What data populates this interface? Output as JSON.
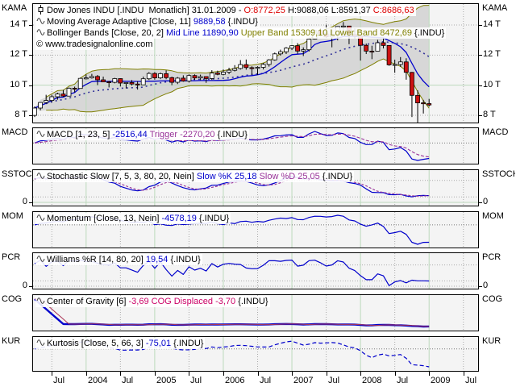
{
  "window_title": "Tradesignal chart - Dow Jones INDU monthly with indicators",
  "main_panel": {
    "name": "KAMA",
    "title_segments": [
      {
        "t": "Dow Jones INDU [.INDU  Monatlich] 31.01.2009 - ",
        "c": "#000000"
      },
      {
        "t": "O:8772,25",
        "c": "#dd0000"
      },
      {
        "t": " H:9088,06 L:8591,37 ",
        "c": "#000000"
      },
      {
        "t": "C:8686,63",
        "c": "#dd0000"
      }
    ],
    "ma_segments": [
      {
        "t": "Moving Average Adaptive [Close, 11] ",
        "c": "#000000"
      },
      {
        "t": "9889,58",
        "c": "#0000cc"
      },
      {
        "t": " {.INDU}",
        "c": "#000000"
      }
    ],
    "bb_segments": [
      {
        "t": "Bollinger Bands [Close, 20, 2] ",
        "c": "#000000"
      },
      {
        "t": "Mid Line 11890,90",
        "c": "#0000cc"
      },
      {
        "t": " ",
        "c": "#000000"
      },
      {
        "t": "Upper Band 15309,10",
        "c": "#808000"
      },
      {
        "t": " ",
        "c": "#000000"
      },
      {
        "t": "Lower Band 8472,69",
        "c": "#808000"
      },
      {
        "t": " {.INDU}",
        "c": "#000000"
      }
    ],
    "copyright": "© www.tradesignalonline.com",
    "y_ticks": [
      {
        "label": "14 T",
        "value": 14000
      },
      {
        "label": "12 T",
        "value": 12000
      },
      {
        "label": "10 T",
        "value": 10000
      },
      {
        "label": "8 T",
        "value": 8000
      }
    ]
  },
  "indicator_panels": [
    {
      "id": "macd",
      "name": "MACD",
      "segments": [
        {
          "t": "MACD [1, 23, 5] ",
          "c": "#000000"
        },
        {
          "t": "-2516,44",
          "c": "#0000cc"
        },
        {
          "t": " Trigger -2270,20",
          "c": "#993399"
        },
        {
          "t": " {.INDU}",
          "c": "#000000"
        }
      ]
    },
    {
      "id": "sstoc",
      "name": "SSTOCH",
      "zero_label": "0",
      "segments": [
        {
          "t": "Stochastic Slow [7, 5, 3, 80, 20, Nein] ",
          "c": "#000000"
        },
        {
          "t": "Slow %K 25,18",
          "c": "#0000cc"
        },
        {
          "t": " ",
          "c": "#000000"
        },
        {
          "t": "Slow %D 25,05",
          "c": "#993399"
        },
        {
          "t": " {.INDU}",
          "c": "#000000"
        }
      ]
    },
    {
      "id": "mom",
      "name": "MOM",
      "segments": [
        {
          "t": "Momentum [Close, 13, Nein] ",
          "c": "#000000"
        },
        {
          "t": "-4578,19",
          "c": "#0000cc"
        },
        {
          "t": " {.INDU}",
          "c": "#000000"
        }
      ]
    },
    {
      "id": "pcr",
      "name": "PCR",
      "zero_label": "0",
      "segments": [
        {
          "t": "Williams %R [14, 80, 20] ",
          "c": "#000000"
        },
        {
          "t": "19,54",
          "c": "#0000cc"
        },
        {
          "t": " {.INDU}",
          "c": "#000000"
        }
      ]
    },
    {
      "id": "cog",
      "name": "COG",
      "segments": [
        {
          "t": "Center of Gravity [6] ",
          "c": "#000000"
        },
        {
          "t": "-3,69",
          "c": "#cc0066"
        },
        {
          "t": " COG Displaced -3,70",
          "c": "#cc0066"
        },
        {
          "t": " {.INDU}",
          "c": "#000000"
        }
      ]
    },
    {
      "id": "kur",
      "name": "KUR",
      "segments": [
        {
          "t": "Kurtosis [Close, 5, 66, 3] ",
          "c": "#000000"
        },
        {
          "t": "-75,01",
          "c": "#0000cc"
        },
        {
          "t": " {.INDU}",
          "c": "#000000"
        }
      ]
    }
  ],
  "x_axis": {
    "tick_labels": [
      "Jul",
      "2004",
      "Jul",
      "2005",
      "Jul",
      "2006",
      "Jul",
      "2007",
      "Jul",
      "2008",
      "Jul",
      "2009",
      "Jul"
    ]
  },
  "colors": {
    "up_candle": "#ffffff",
    "down_candle": "#cc1111",
    "wick": "#000000",
    "kama_line": "#0000cc",
    "bollinger_band": "#7f7f00",
    "band_fill": "#d7d7d7",
    "mid_line": "#333399",
    "indicator_line": "#0000cc",
    "signal_line": "#993399",
    "cog_displaced_line": "#aa3355",
    "grid_green": "#bcd9bc",
    "grid_dot": "#aaaaaa",
    "panel_bg": "#f4f4f4",
    "value_red": "#dd0000",
    "value_blue": "#0000cc",
    "value_olive": "#808000",
    "value_purple": "#993399",
    "value_magenta": "#cc0066"
  },
  "chart_data": {
    "type": "candlestick",
    "symbol": ".INDU",
    "series_name": "Dow Jones INDU",
    "interval": "Monatlich",
    "last_bar_date": "31.01.2009",
    "last_bar": {
      "open": 8772.25,
      "high": 9088.06,
      "low": 8591.37,
      "close": 8686.63
    },
    "start_month": "2003-04",
    "end_month": "2009-01",
    "y_axis": {
      "tick_values": [
        8000,
        10000,
        12000,
        14000
      ],
      "tick_labels": [
        "8 T",
        "10 T",
        "12 T",
        "14 T"
      ],
      "approx_range": [
        7460,
        15450
      ]
    },
    "x_tick_labels": [
      "Jul",
      "2004",
      "Jul",
      "2005",
      "Jul",
      "2006",
      "Jul",
      "2007",
      "Jul",
      "2008",
      "Jul",
      "2009",
      "Jul"
    ],
    "ohlc": [
      [
        7992,
        8588,
        7886,
        8480
      ],
      [
        8480,
        8869,
        8329,
        8850
      ],
      [
        8850,
        9362,
        8770,
        8985
      ],
      [
        8985,
        9361,
        8871,
        9233
      ],
      [
        9233,
        9499,
        9036,
        9416
      ],
      [
        9416,
        9686,
        9230,
        9275
      ],
      [
        9275,
        9850,
        9269,
        9801
      ],
      [
        9801,
        9903,
        9521,
        9782
      ],
      [
        9782,
        10494,
        9782,
        10454
      ],
      [
        10454,
        10705,
        10384,
        10488
      ],
      [
        10488,
        10753,
        10434,
        10584
      ],
      [
        10584,
        10678,
        10007,
        10358
      ],
      [
        10358,
        10570,
        10218,
        10226
      ],
      [
        10226,
        10290,
        9852,
        10188
      ],
      [
        10188,
        10487,
        10122,
        10435
      ],
      [
        10435,
        10463,
        9914,
        10140
      ],
      [
        10140,
        10195,
        9783,
        10174
      ],
      [
        10174,
        10342,
        9977,
        10080
      ],
      [
        10080,
        10261,
        9709,
        10027
      ],
      [
        10027,
        10572,
        10027,
        10428
      ],
      [
        10428,
        10868,
        10345,
        10783
      ],
      [
        10783,
        10868,
        10368,
        10490
      ],
      [
        10490,
        10841,
        10404,
        10766
      ],
      [
        10766,
        10984,
        10396,
        10504
      ],
      [
        10504,
        10568,
        10000,
        10193
      ],
      [
        10193,
        10542,
        10075,
        10467
      ],
      [
        10467,
        10656,
        10230,
        10275
      ],
      [
        10275,
        10718,
        10175,
        10641
      ],
      [
        10641,
        10719,
        10350,
        10482
      ],
      [
        10482,
        10701,
        10336,
        10569
      ],
      [
        10569,
        10578,
        10156,
        10440
      ],
      [
        10440,
        10997,
        10347,
        10806
      ],
      [
        10806,
        10964,
        10661,
        10718
      ],
      [
        10718,
        11047,
        10661,
        10865
      ],
      [
        10865,
        11159,
        10737,
        10993
      ],
      [
        10993,
        11334,
        10913,
        11109
      ],
      [
        11109,
        11670,
        11036,
        11367
      ],
      [
        11367,
        11709,
        11030,
        11168
      ],
      [
        11168,
        11257,
        10698,
        11150
      ],
      [
        11150,
        11257,
        10683,
        11186
      ],
      [
        11186,
        11477,
        11047,
        11381
      ],
      [
        11381,
        11742,
        11237,
        11679
      ],
      [
        11679,
        12167,
        11630,
        12081
      ],
      [
        12081,
        12361,
        11965,
        12222
      ],
      [
        12222,
        12530,
        12072,
        12463
      ],
      [
        12463,
        12657,
        12337,
        12622
      ],
      [
        12622,
        12796,
        12089,
        12269
      ],
      [
        12269,
        12511,
        11939,
        12354
      ],
      [
        12354,
        13162,
        12242,
        13063
      ],
      [
        13063,
        13692,
        13041,
        13628
      ],
      [
        13628,
        13777,
        13251,
        13409
      ],
      [
        13409,
        14022,
        13134,
        13212
      ],
      [
        13212,
        13696,
        12518,
        13358
      ],
      [
        13358,
        13925,
        12979,
        13896
      ],
      [
        13896,
        14198,
        13407,
        13930
      ],
      [
        13930,
        13938,
        12724,
        13372
      ],
      [
        13372,
        13781,
        13092,
        13265
      ],
      [
        13265,
        13280,
        11635,
        12650
      ],
      [
        12650,
        12767,
        12070,
        12266
      ],
      [
        12266,
        12622,
        11732,
        12263
      ],
      [
        12263,
        13010,
        12266,
        12820
      ],
      [
        12820,
        13137,
        12442,
        12638
      ],
      [
        12638,
        12645,
        11288,
        11350
      ],
      [
        11350,
        11698,
        10828,
        11378
      ],
      [
        11378,
        11867,
        11222,
        11544
      ],
      [
        11544,
        11790,
        10366,
        10851
      ],
      [
        10851,
        10882,
        7883,
        9325
      ],
      [
        9325,
        9654,
        7449,
        8829
      ],
      [
        8829,
        9026,
        8118,
        8776
      ],
      [
        8776,
        9088,
        8591,
        8687
      ]
    ],
    "indicators": [
      {
        "panel": "KAMA",
        "name": "Moving Average Adaptive [Close, 11]",
        "value": 9889.58
      },
      {
        "panel": "KAMA",
        "name": "Bollinger Bands [Close, 20, 2]",
        "mid_line": 11890.9,
        "upper_band": 15309.1,
        "lower_band": 8472.69
      },
      {
        "panel": "MACD",
        "name": "MACD [1, 23, 5]",
        "value": -2516.44,
        "trigger": -2270.2
      },
      {
        "panel": "SSTOCH",
        "name": "Stochastic Slow [7, 5, 3, 80, 20, Nein]",
        "slow_k": 25.18,
        "slow_d": 25.05,
        "levels": [
          20,
          80
        ]
      },
      {
        "panel": "MOM",
        "name": "Momentum [Close, 13, Nein]",
        "value": -4578.19
      },
      {
        "panel": "PCR",
        "name": "Williams %R [14, 80, 20]",
        "value": 19.54,
        "levels": [
          20,
          80
        ]
      },
      {
        "panel": "COG",
        "name": "Center of Gravity [6]",
        "value": -3.69,
        "cog_displaced": -3.7
      },
      {
        "panel": "KUR",
        "name": "Kurtosis [Close, 5, 66, 3]",
        "value": -75.01
      }
    ]
  }
}
